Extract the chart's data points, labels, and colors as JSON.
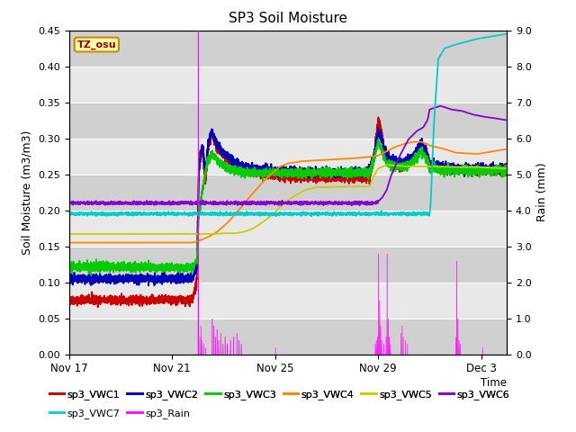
{
  "title": "SP3 Soil Moisture",
  "xlabel": "Time",
  "ylabel_left": "Soil Moisture (m3/m3)",
  "ylabel_right": "Rain (mm)",
  "ylim_left": [
    0.0,
    0.45
  ],
  "ylim_right": [
    0.0,
    9.0
  ],
  "yticks_left": [
    0.0,
    0.05,
    0.1,
    0.15,
    0.2,
    0.25,
    0.3,
    0.35,
    0.4,
    0.45
  ],
  "yticks_right": [
    0.0,
    1.0,
    2.0,
    3.0,
    4.0,
    5.0,
    6.0,
    7.0,
    8.0,
    9.0
  ],
  "bg_color": "#d8d8d8",
  "fig_color": "#ffffff",
  "tz_label": "TZ_osu",
  "band_colors": [
    "#d0d0d0",
    "#e8e8e8"
  ],
  "vwc1_color": "#cc0000",
  "vwc2_color": "#0000bb",
  "vwc3_color": "#00cc00",
  "vwc4_color": "#ff8800",
  "vwc5_color": "#cccc00",
  "vwc6_color": "#8800cc",
  "vwc7_color": "#00cccc",
  "rain_color": "#ff00ff",
  "legend_labels": [
    "sp3_VWC1",
    "sp3_VWC2",
    "sp3_VWC3",
    "sp3_VWC4",
    "sp3_VWC5",
    "sp3_VWC6",
    "sp3_VWC7",
    "sp3_Rain"
  ]
}
